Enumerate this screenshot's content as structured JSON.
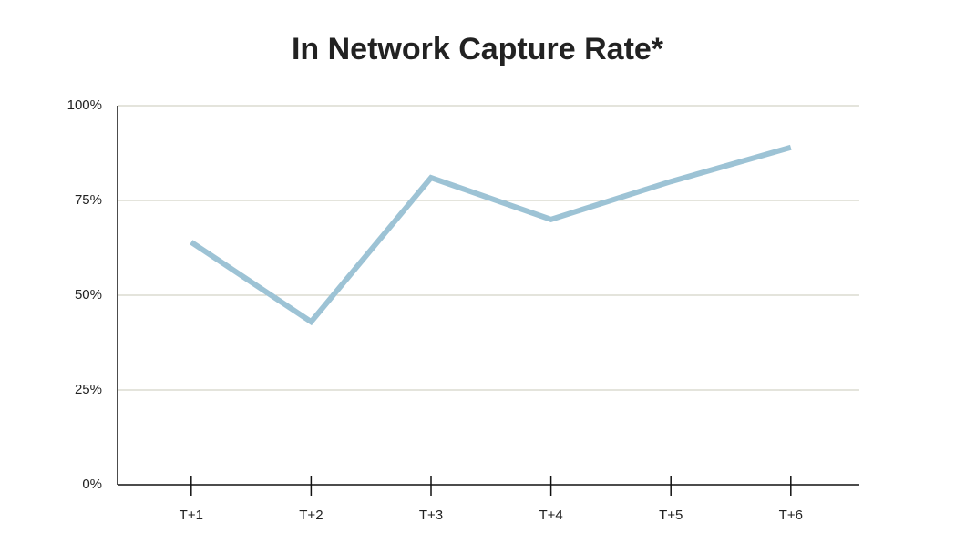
{
  "chart_data": {
    "type": "line",
    "title": "In Network Capture Rate*",
    "categories": [
      "T+1",
      "T+2",
      "T+3",
      "T+4",
      "T+5",
      "T+6"
    ],
    "values": [
      64,
      43,
      81,
      70,
      80,
      89
    ],
    "color": "#9dc3d5",
    "ylim": [
      0,
      100
    ],
    "yticks": [
      {
        "value": 0,
        "label": "0%"
      },
      {
        "value": 25,
        "label": "25%"
      },
      {
        "value": 50,
        "label": "50%"
      },
      {
        "value": 75,
        "label": "75%"
      },
      {
        "value": 100,
        "label": "100%"
      }
    ],
    "grid": true
  }
}
